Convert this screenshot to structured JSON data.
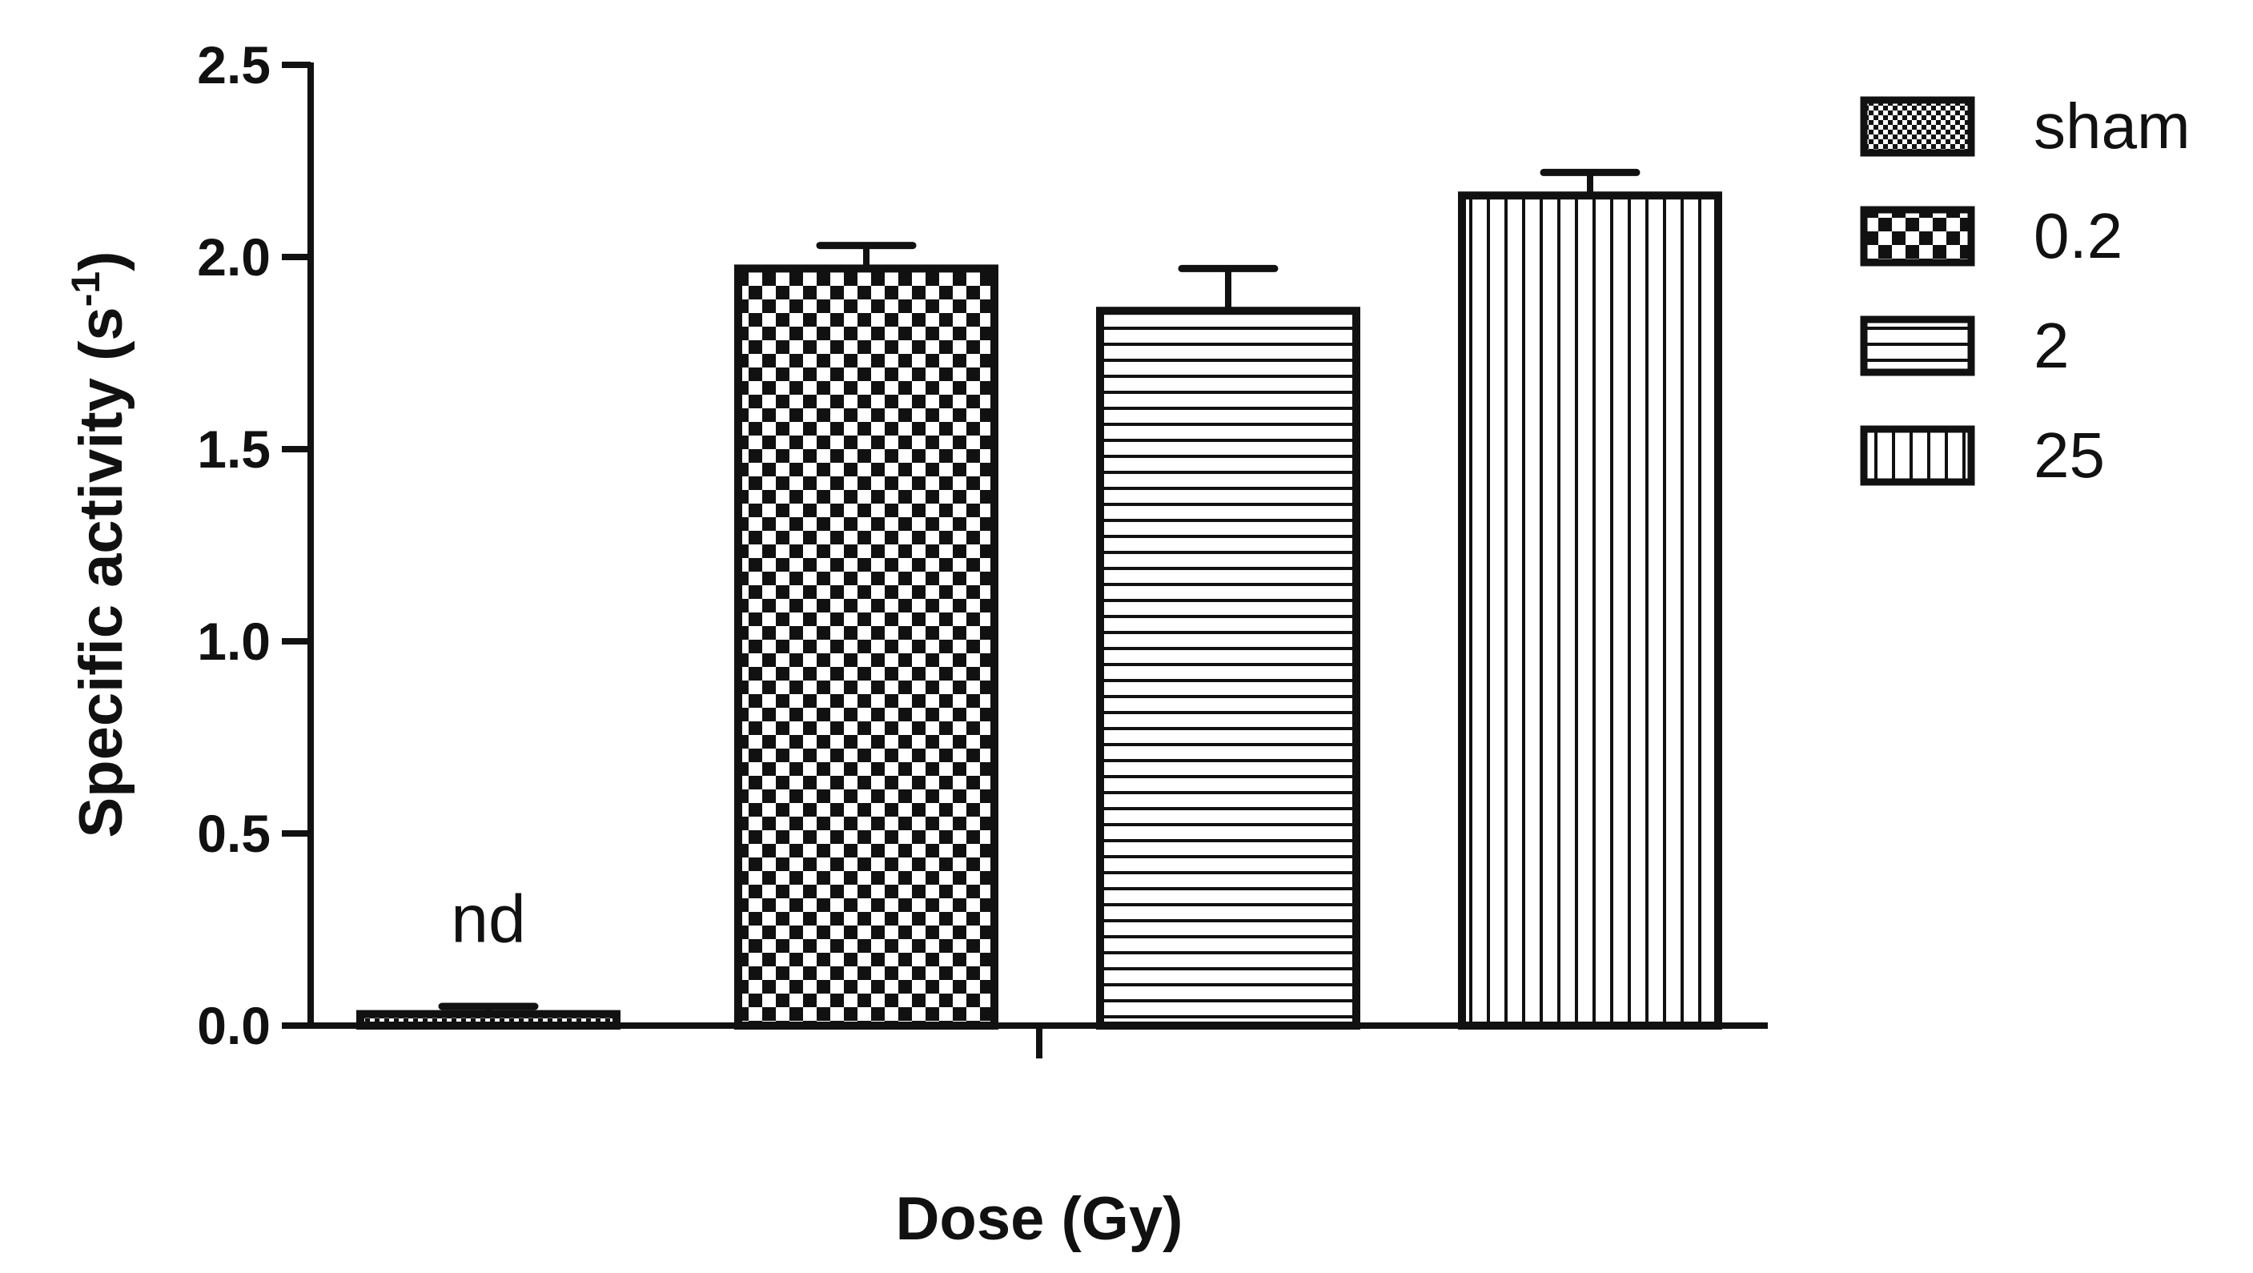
{
  "chart_data": {
    "type": "bar",
    "title": "",
    "xlabel": "Dose (Gy)",
    "ylabel": "Specific activity (s-1)",
    "ylabel_parts": {
      "main": "Specific activity (s",
      "sup": "-1",
      "close": ")"
    },
    "ylim": [
      0,
      2.5
    ],
    "yticks": [
      "0.0",
      "0.5",
      "1.0",
      "1.5",
      "2.0",
      "2.5"
    ],
    "grid": false,
    "legend_position": "top-right",
    "series": [
      {
        "name": "sham",
        "value": 0.03,
        "error": 0.02,
        "pattern": "fine-checker",
        "annotation": "nd"
      },
      {
        "name": "0.2",
        "value": 1.97,
        "error": 0.06,
        "pattern": "checker"
      },
      {
        "name": "2",
        "value": 1.86,
        "error": 0.11,
        "pattern": "horizontal-lines"
      },
      {
        "name": "25",
        "value": 2.16,
        "error": 0.06,
        "pattern": "vertical-lines"
      }
    ]
  }
}
